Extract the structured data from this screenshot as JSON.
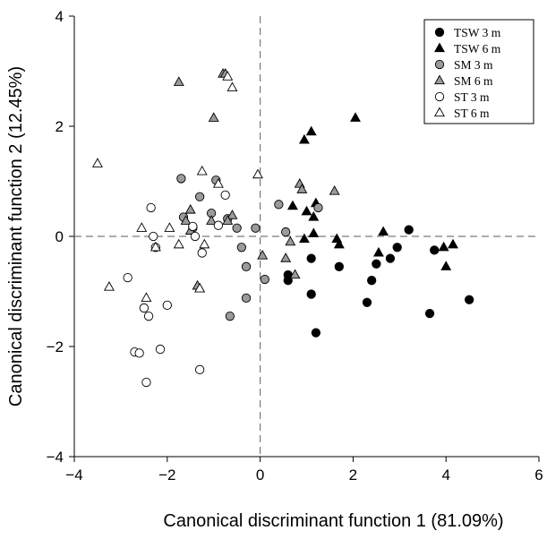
{
  "chart_data": {
    "type": "scatter",
    "title": "",
    "xlabel": "Canonical discriminant function 1 (81.09%)",
    "ylabel": "Canonical discriminant function 2 (12.45%)",
    "xlim": [
      -4,
      6
    ],
    "ylim": [
      -4,
      4
    ],
    "xticks": [
      "−4",
      "−2",
      "0",
      "2",
      "4",
      "6"
    ],
    "yticks": [
      "−4",
      "−2",
      "0",
      "2",
      "4"
    ],
    "xtick_values": [
      -4,
      -2,
      0,
      2,
      4,
      6
    ],
    "ytick_values": [
      -4,
      -2,
      0,
      2,
      4
    ],
    "reference_lines": {
      "x": 0,
      "y": 0,
      "style": "dashed"
    },
    "grid": false,
    "legend_position": "top-right",
    "series": [
      {
        "name": "TSW 3 m",
        "marker": "circle",
        "fill": "#000000",
        "points": [
          [
            3.2,
            0.12
          ],
          [
            3.75,
            -0.25
          ],
          [
            2.95,
            -0.2
          ],
          [
            2.8,
            -0.4
          ],
          [
            2.5,
            -0.5
          ],
          [
            2.4,
            -0.8
          ],
          [
            2.3,
            -1.2
          ],
          [
            1.7,
            -0.55
          ],
          [
            1.1,
            -0.4
          ],
          [
            0.6,
            -0.7
          ],
          [
            0.6,
            -0.8
          ],
          [
            1.1,
            -1.05
          ],
          [
            1.2,
            -1.75
          ],
          [
            3.65,
            -1.4
          ],
          [
            4.5,
            -1.15
          ]
        ]
      },
      {
        "name": "TSW 6 m",
        "marker": "triangle",
        "fill": "#000000",
        "points": [
          [
            2.05,
            2.15
          ],
          [
            1.1,
            1.9
          ],
          [
            0.95,
            1.75
          ],
          [
            0.7,
            0.55
          ],
          [
            1.0,
            0.45
          ],
          [
            1.15,
            0.35
          ],
          [
            1.2,
            0.6
          ],
          [
            0.95,
            -0.05
          ],
          [
            1.15,
            0.05
          ],
          [
            1.65,
            -0.05
          ],
          [
            1.7,
            -0.15
          ],
          [
            2.65,
            0.08
          ],
          [
            2.55,
            -0.3
          ],
          [
            3.95,
            -0.2
          ],
          [
            4.15,
            -0.15
          ],
          [
            4.0,
            -0.55
          ]
        ]
      },
      {
        "name": "SM 3 m",
        "marker": "circle",
        "fill": "#9a9a9a",
        "points": [
          [
            -1.7,
            1.05
          ],
          [
            -0.95,
            1.02
          ],
          [
            -1.3,
            0.72
          ],
          [
            -1.05,
            0.42
          ],
          [
            -0.7,
            0.32
          ],
          [
            -1.65,
            0.35
          ],
          [
            -0.5,
            0.15
          ],
          [
            -0.1,
            0.15
          ],
          [
            -1.45,
            0.15
          ],
          [
            0.4,
            0.58
          ],
          [
            1.25,
            0.52
          ],
          [
            0.55,
            0.08
          ],
          [
            -0.4,
            -0.2
          ],
          [
            -0.3,
            -0.55
          ],
          [
            -0.3,
            -1.12
          ],
          [
            0.1,
            -0.78
          ],
          [
            -0.65,
            -1.45
          ]
        ]
      },
      {
        "name": "SM 6 m",
        "marker": "triangle",
        "fill": "#9a9a9a",
        "points": [
          [
            -1.75,
            2.8
          ],
          [
            -0.8,
            2.95
          ],
          [
            -0.75,
            2.95
          ],
          [
            -1.0,
            2.15
          ],
          [
            0.85,
            0.95
          ],
          [
            0.9,
            0.85
          ],
          [
            1.6,
            0.82
          ],
          [
            -1.5,
            0.48
          ],
          [
            -1.6,
            0.28
          ],
          [
            -1.05,
            0.28
          ],
          [
            -0.6,
            0.38
          ],
          [
            -0.7,
            0.28
          ],
          [
            0.55,
            -0.4
          ],
          [
            0.65,
            -0.1
          ],
          [
            0.75,
            -0.7
          ],
          [
            0.05,
            -0.35
          ],
          [
            -1.35,
            -0.9
          ],
          [
            -1.3,
            -0.95
          ],
          [
            -1.5,
            0.1
          ]
        ]
      },
      {
        "name": "ST 3 m",
        "marker": "circle",
        "fill": "#ffffff",
        "points": [
          [
            -0.75,
            0.75
          ],
          [
            -2.35,
            0.52
          ],
          [
            -0.9,
            0.2
          ],
          [
            -1.45,
            0.18
          ],
          [
            -1.4,
            -0.0
          ],
          [
            -1.25,
            -0.3
          ],
          [
            -2.3,
            0.0
          ],
          [
            -2.25,
            -0.2
          ],
          [
            -2.85,
            -0.75
          ],
          [
            -2.0,
            -1.25
          ],
          [
            -2.5,
            -1.3
          ],
          [
            -2.4,
            -1.45
          ],
          [
            -2.7,
            -2.1
          ],
          [
            -2.6,
            -2.12
          ],
          [
            -2.15,
            -2.05
          ],
          [
            -1.3,
            -2.42
          ],
          [
            -2.45,
            -2.65
          ]
        ]
      },
      {
        "name": "ST 6 m",
        "marker": "triangle",
        "fill": "#ffffff",
        "points": [
          [
            -0.7,
            2.9
          ],
          [
            -0.6,
            2.7
          ],
          [
            -3.5,
            1.32
          ],
          [
            -0.05,
            1.12
          ],
          [
            -1.25,
            1.18
          ],
          [
            -0.9,
            0.95
          ],
          [
            -2.55,
            0.15
          ],
          [
            -1.95,
            0.15
          ],
          [
            -1.2,
            -0.15
          ],
          [
            -1.75,
            -0.15
          ],
          [
            -2.25,
            -0.2
          ],
          [
            -1.3,
            -0.95
          ],
          [
            -3.25,
            -0.92
          ],
          [
            -2.45,
            -1.12
          ]
        ]
      }
    ]
  }
}
